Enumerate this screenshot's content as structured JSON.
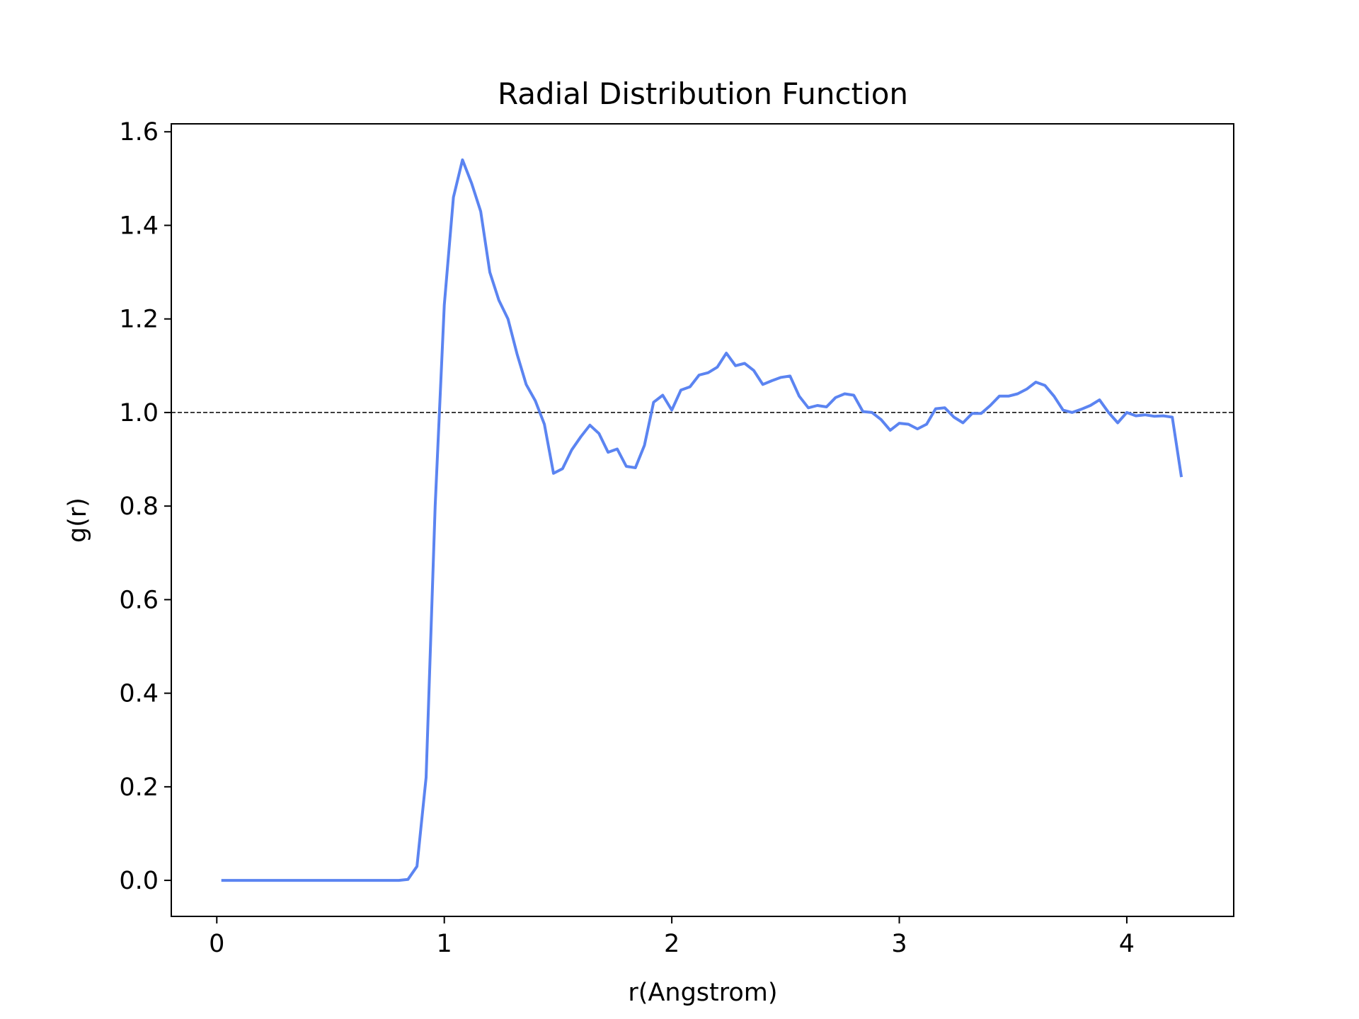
{
  "chart_data": {
    "type": "line",
    "title": "Radial Distribution Function",
    "xlabel": "r(Angstrom)",
    "ylabel": "g(r)",
    "xlim": [
      -0.2,
      4.47
    ],
    "ylim": [
      -0.077,
      1.617
    ],
    "xticks": [
      0,
      1,
      2,
      3,
      4
    ],
    "xtick_labels": [
      "0",
      "1",
      "2",
      "3",
      "4"
    ],
    "yticks": [
      0.0,
      0.2,
      0.4,
      0.6,
      0.8,
      1.0,
      1.2,
      1.4,
      1.6
    ],
    "ytick_labels": [
      "0.0",
      "0.2",
      "0.4",
      "0.6",
      "0.8",
      "1.0",
      "1.2",
      "1.4",
      "1.6"
    ],
    "grid": false,
    "reference_line": {
      "y": 1.0,
      "style": "dashed",
      "color": "#000000"
    },
    "series": [
      {
        "color": "#5b84f1",
        "x": [
          0.02,
          0.8,
          0.84,
          0.88,
          0.92,
          0.96,
          1.0,
          1.04,
          1.08,
          1.12,
          1.16,
          1.2,
          1.24,
          1.28,
          1.32,
          1.36,
          1.4,
          1.44,
          1.48,
          1.52,
          1.56,
          1.6,
          1.64,
          1.68,
          1.72,
          1.76,
          1.8,
          1.84,
          1.88,
          1.92,
          1.96,
          2.0,
          2.04,
          2.08,
          2.12,
          2.16,
          2.2,
          2.24,
          2.28,
          2.32,
          2.36,
          2.4,
          2.44,
          2.48,
          2.52,
          2.56,
          2.6,
          2.64,
          2.68,
          2.72,
          2.76,
          2.8,
          2.84,
          2.88,
          2.92,
          2.96,
          3.0,
          3.04,
          3.08,
          3.12,
          3.16,
          3.2,
          3.24,
          3.28,
          3.32,
          3.36,
          3.4,
          3.44,
          3.48,
          3.52,
          3.56,
          3.6,
          3.64,
          3.68,
          3.72,
          3.76,
          3.8,
          3.84,
          3.88,
          3.92,
          3.96,
          4.0,
          4.04,
          4.08,
          4.12,
          4.16,
          4.2,
          4.24
        ],
        "y": [
          0.0,
          0.0,
          0.002,
          0.03,
          0.22,
          0.8,
          1.23,
          1.46,
          1.54,
          1.49,
          1.43,
          1.3,
          1.24,
          1.2,
          1.125,
          1.06,
          1.025,
          0.975,
          0.87,
          0.88,
          0.92,
          0.948,
          0.973,
          0.955,
          0.915,
          0.922,
          0.885,
          0.882,
          0.93,
          1.022,
          1.037,
          1.005,
          1.048,
          1.055,
          1.08,
          1.085,
          1.097,
          1.127,
          1.1,
          1.105,
          1.09,
          1.06,
          1.068,
          1.075,
          1.078,
          1.035,
          1.01,
          1.015,
          1.012,
          1.032,
          1.04,
          1.037,
          1.002,
          1.0,
          0.985,
          0.962,
          0.977,
          0.975,
          0.965,
          0.975,
          1.008,
          1.01,
          0.99,
          0.978,
          0.998,
          0.998,
          1.015,
          1.035,
          1.035,
          1.04,
          1.05,
          1.065,
          1.058,
          1.035,
          1.005,
          1.0,
          1.007,
          1.015,
          1.027,
          1.0,
          0.978,
          1.0,
          0.993,
          0.995,
          0.992,
          0.993,
          0.99,
          0.862
        ]
      }
    ]
  }
}
